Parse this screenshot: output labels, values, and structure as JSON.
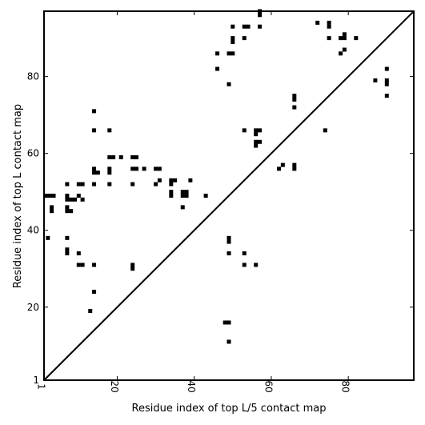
{
  "chart_data": {
    "type": "scatter",
    "xlabel": "Residue index of top L/5 contact map",
    "ylabel": "Residue index of top L contact map",
    "xlim": [
      1,
      97
    ],
    "ylim": [
      1,
      97
    ],
    "xticks": [
      1,
      20,
      40,
      60,
      80
    ],
    "yticks": [
      1,
      20,
      40,
      60,
      80
    ],
    "diagonal": true,
    "marker": "square",
    "color": "#000000",
    "points": [
      [
        1.5,
        49
      ],
      [
        2.5,
        49
      ],
      [
        3.5,
        49
      ],
      [
        2,
        38
      ],
      [
        3,
        46
      ],
      [
        3,
        45
      ],
      [
        7,
        52
      ],
      [
        7,
        49
      ],
      [
        7,
        48
      ],
      [
        8,
        48
      ],
      [
        9,
        48
      ],
      [
        7,
        46
      ],
      [
        7,
        45
      ],
      [
        8,
        45
      ],
      [
        7,
        38
      ],
      [
        7,
        35
      ],
      [
        7,
        34
      ],
      [
        10,
        52
      ],
      [
        11,
        52
      ],
      [
        10,
        49
      ],
      [
        11,
        48
      ],
      [
        10,
        34
      ],
      [
        10,
        31
      ],
      [
        11,
        31
      ],
      [
        13,
        19
      ],
      [
        14,
        71
      ],
      [
        14,
        66
      ],
      [
        14,
        56
      ],
      [
        14,
        55
      ],
      [
        15,
        55
      ],
      [
        14,
        52
      ],
      [
        14,
        31
      ],
      [
        14,
        24
      ],
      [
        18,
        66
      ],
      [
        18,
        59
      ],
      [
        19,
        59
      ],
      [
        18,
        56
      ],
      [
        18,
        55
      ],
      [
        18,
        52
      ],
      [
        21,
        59
      ],
      [
        24,
        59
      ],
      [
        25,
        59
      ],
      [
        24,
        56
      ],
      [
        25,
        56
      ],
      [
        27,
        56
      ],
      [
        24,
        52
      ],
      [
        24,
        31
      ],
      [
        24,
        30
      ],
      [
        30,
        56
      ],
      [
        31,
        56
      ],
      [
        31,
        53
      ],
      [
        30,
        52
      ],
      [
        34,
        53
      ],
      [
        35,
        53
      ],
      [
        34,
        52
      ],
      [
        34,
        50
      ],
      [
        34,
        49
      ],
      [
        37,
        50
      ],
      [
        38,
        50
      ],
      [
        37,
        49
      ],
      [
        38,
        49
      ],
      [
        39,
        53
      ],
      [
        37,
        46
      ],
      [
        43,
        49
      ],
      [
        46,
        86
      ],
      [
        46,
        82
      ],
      [
        48,
        16
      ],
      [
        49,
        16
      ],
      [
        49,
        11
      ],
      [
        49,
        86
      ],
      [
        50,
        86
      ],
      [
        50,
        93
      ],
      [
        50,
        90
      ],
      [
        50,
        89
      ],
      [
        49,
        78
      ],
      [
        49,
        38
      ],
      [
        49,
        37
      ],
      [
        49,
        34
      ],
      [
        53,
        93
      ],
      [
        54,
        93
      ],
      [
        53,
        90
      ],
      [
        53,
        66
      ],
      [
        53,
        34
      ],
      [
        53,
        31
      ],
      [
        56,
        31
      ],
      [
        56,
        66
      ],
      [
        57,
        66
      ],
      [
        56,
        65
      ],
      [
        56,
        63
      ],
      [
        57,
        63
      ],
      [
        56,
        62
      ],
      [
        57,
        97
      ],
      [
        57,
        96
      ],
      [
        57,
        93
      ],
      [
        62,
        56
      ],
      [
        63,
        57
      ],
      [
        66,
        75
      ],
      [
        66,
        74
      ],
      [
        66,
        72
      ],
      [
        66,
        57
      ],
      [
        66,
        56
      ],
      [
        72,
        94
      ],
      [
        74,
        66
      ],
      [
        75,
        94
      ],
      [
        75,
        93
      ],
      [
        75,
        90
      ],
      [
        78,
        90
      ],
      [
        79,
        90
      ],
      [
        79,
        91
      ],
      [
        78,
        86
      ],
      [
        79,
        87
      ],
      [
        82,
        90
      ],
      [
        87,
        79
      ],
      [
        90,
        82
      ],
      [
        90,
        79
      ],
      [
        90,
        78
      ],
      [
        90,
        75
      ]
    ]
  }
}
